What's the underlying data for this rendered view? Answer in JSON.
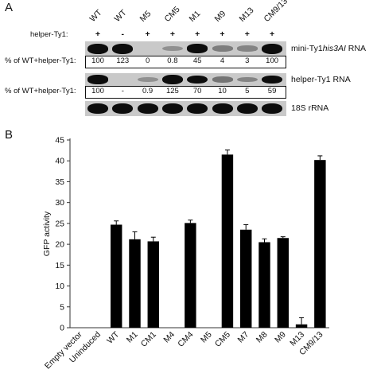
{
  "panel_a": {
    "letter": "A",
    "lanes": [
      "WT",
      "WT",
      "M5",
      "CM5",
      "M1",
      "M9",
      "M13",
      "CM9/13"
    ],
    "helper_label": "helper-Ty1:",
    "helper_signs": [
      "+",
      "-",
      "+",
      "+",
      "+",
      "+",
      "+",
      "+"
    ],
    "blot1_label_pre": "mini-Ty1",
    "blot1_label_italic": "his3AI",
    "blot1_label_post": " RNA",
    "pct_label": "% of WT+helper-Ty1:",
    "blot1_pct": [
      "100",
      "123",
      "0",
      "0.8",
      "45",
      "4",
      "3",
      "100"
    ],
    "blot1_intensity": [
      1.0,
      1.0,
      0.0,
      0.05,
      0.75,
      0.15,
      0.12,
      1.0
    ],
    "blot2_label": "helper-Ty1 RNA",
    "blot2_pct": [
      "100",
      "-",
      "0.9",
      "125",
      "70",
      "10",
      "5",
      "59"
    ],
    "blot2_intensity": [
      0.9,
      0.0,
      0.05,
      1.0,
      0.8,
      0.2,
      0.12,
      0.75
    ],
    "blot3_label": "18S rRNA",
    "blot3_intensity": [
      0.95,
      0.95,
      0.95,
      0.95,
      0.95,
      0.95,
      0.95,
      0.95
    ]
  },
  "panel_b": {
    "letter": "B"
  },
  "chart_data": {
    "type": "bar",
    "ylabel": "GFP activity",
    "ylim": [
      0,
      45
    ],
    "yticks": [
      0,
      5,
      10,
      15,
      20,
      25,
      30,
      35,
      40,
      45
    ],
    "categories": [
      "Empty vector",
      "Uninduced",
      "WT",
      "M1",
      "CM1",
      "M4",
      "CM4",
      "M5",
      "CM5",
      "M7",
      "M8",
      "M9",
      "M13",
      "CM9/13"
    ],
    "values": [
      0,
      0,
      24.7,
      21.2,
      20.7,
      0,
      25.1,
      0,
      41.5,
      23.5,
      20.5,
      21.5,
      0.8,
      40.2
    ],
    "errors": [
      0,
      0,
      0.9,
      1.8,
      1.0,
      0,
      0.7,
      0,
      1.1,
      1.2,
      0.8,
      0.3,
      1.6,
      1.0
    ]
  }
}
